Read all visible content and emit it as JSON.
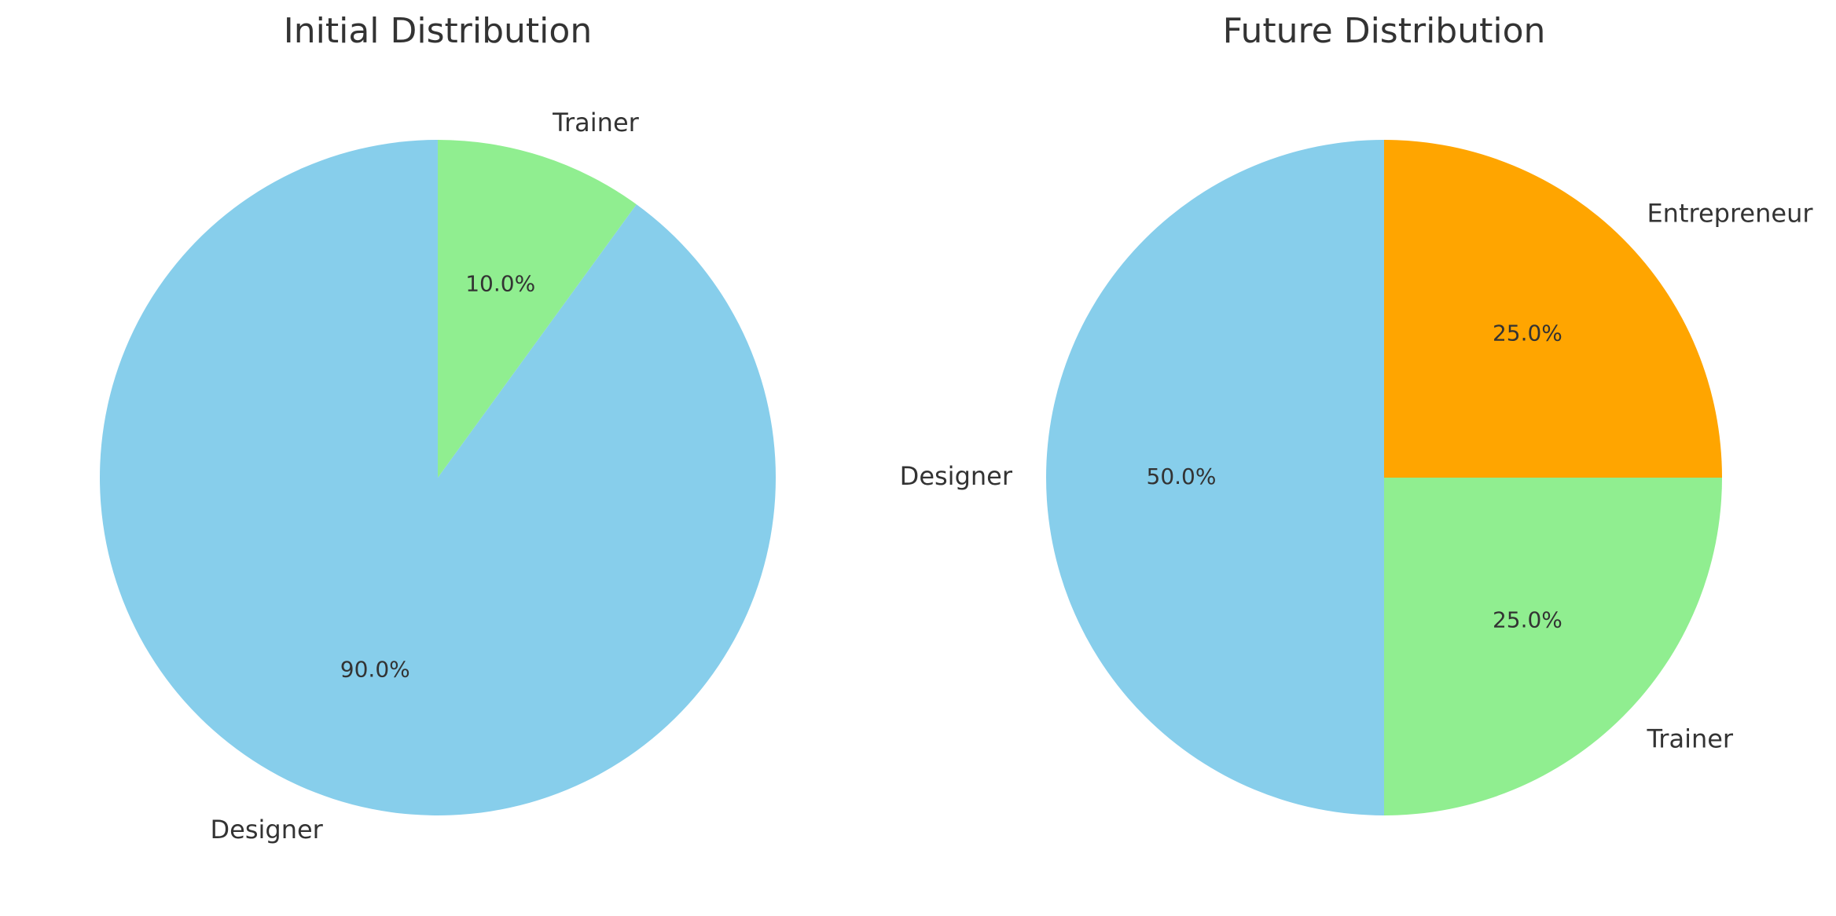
{
  "chart_data": [
    {
      "type": "pie",
      "title": "Initial Distribution",
      "labels": [
        "Designer",
        "Trainer"
      ],
      "values": [
        90.0,
        10.0
      ],
      "percent_labels": [
        "90.0%",
        "10.0%"
      ],
      "colors": [
        "#87CEEB",
        "#90EE90"
      ],
      "start_angle_deg": 90,
      "direction": "counterclockwise"
    },
    {
      "type": "pie",
      "title": "Future Distribution",
      "labels": [
        "Designer",
        "Trainer",
        "Entrepreneur"
      ],
      "values": [
        50.0,
        25.0,
        25.0
      ],
      "percent_labels": [
        "50.0%",
        "25.0%",
        "25.0%"
      ],
      "colors": [
        "#87CEEB",
        "#90EE90",
        "#FFA500"
      ],
      "start_angle_deg": 90,
      "direction": "counterclockwise"
    }
  ]
}
